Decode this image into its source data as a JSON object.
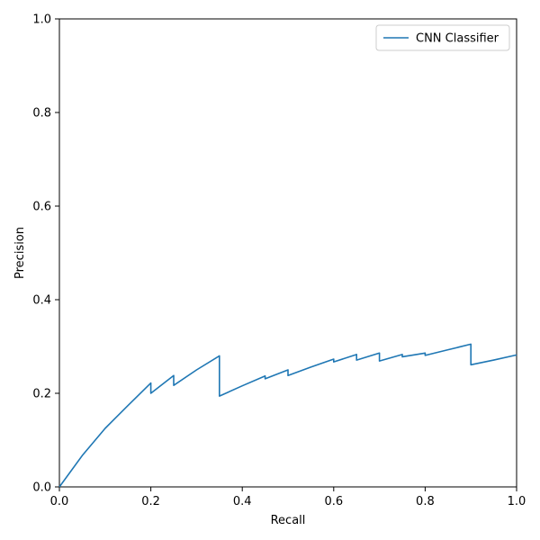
{
  "chart_data": {
    "type": "line",
    "title": "",
    "xlabel": "Recall",
    "ylabel": "Precision",
    "xlim": [
      0.0,
      1.0
    ],
    "ylim": [
      0.0,
      1.0
    ],
    "xticks": [
      "0.0",
      "0.2",
      "0.4",
      "0.6",
      "0.8",
      "1.0"
    ],
    "yticks": [
      "0.0",
      "0.2",
      "0.4",
      "0.6",
      "0.8",
      "1.0"
    ],
    "grid": false,
    "legend_position": "top-right",
    "series": [
      {
        "name": "CNN Classifier",
        "color": "#1f77b4",
        "points": [
          [
            0.0,
            0.0
          ],
          [
            0.05,
            0.067
          ],
          [
            0.1,
            0.125
          ],
          [
            0.15,
            0.174
          ],
          [
            0.2,
            0.222
          ],
          [
            0.2,
            0.2
          ],
          [
            0.25,
            0.238
          ],
          [
            0.25,
            0.217
          ],
          [
            0.3,
            0.25
          ],
          [
            0.35,
            0.28
          ],
          [
            0.35,
            0.194
          ],
          [
            0.4,
            0.216
          ],
          [
            0.45,
            0.237
          ],
          [
            0.45,
            0.231
          ],
          [
            0.5,
            0.25
          ],
          [
            0.5,
            0.238
          ],
          [
            0.55,
            0.256
          ],
          [
            0.6,
            0.273
          ],
          [
            0.6,
            0.267
          ],
          [
            0.65,
            0.283
          ],
          [
            0.65,
            0.271
          ],
          [
            0.7,
            0.286
          ],
          [
            0.7,
            0.269
          ],
          [
            0.75,
            0.283
          ],
          [
            0.75,
            0.278
          ],
          [
            0.8,
            0.286
          ],
          [
            0.8,
            0.281
          ],
          [
            0.85,
            0.293
          ],
          [
            0.9,
            0.305
          ],
          [
            0.9,
            0.261
          ],
          [
            0.95,
            0.271
          ],
          [
            1.0,
            0.282
          ]
        ]
      }
    ]
  }
}
